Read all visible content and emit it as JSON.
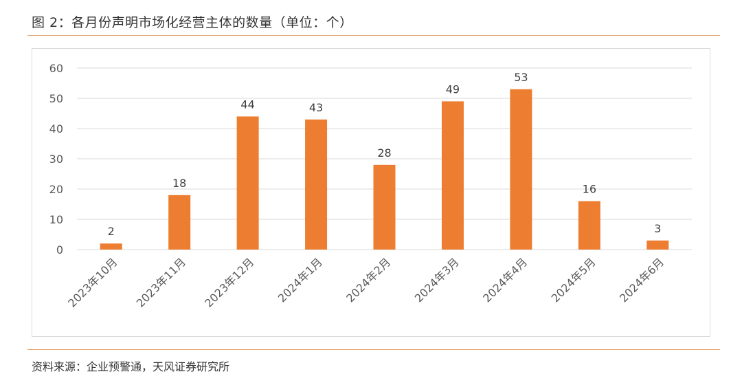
{
  "figure_title": "图 2：各月份声明市场化经营主体的数量（单位：个）",
  "source": "资料来源：企业预警通，天风证券研究所",
  "colors": {
    "bar": "#ed7d31",
    "grid": "#d9d9d9",
    "rule": "#e8a16a",
    "text": "#595959"
  },
  "chart_data": {
    "type": "bar",
    "categories": [
      "2023年10月",
      "2023年11月",
      "2023年12月",
      "2024年1月",
      "2024年2月",
      "2024年3月",
      "2024年4月",
      "2024年5月",
      "2024年6月"
    ],
    "values": [
      2,
      18,
      44,
      43,
      28,
      49,
      53,
      16,
      3
    ],
    "yticks": [
      0,
      10,
      20,
      30,
      40,
      50,
      60
    ],
    "ylim": [
      0,
      60
    ],
    "grid": true,
    "data_labels": true,
    "legend": "none",
    "title": "",
    "xlabel": "",
    "ylabel": ""
  }
}
